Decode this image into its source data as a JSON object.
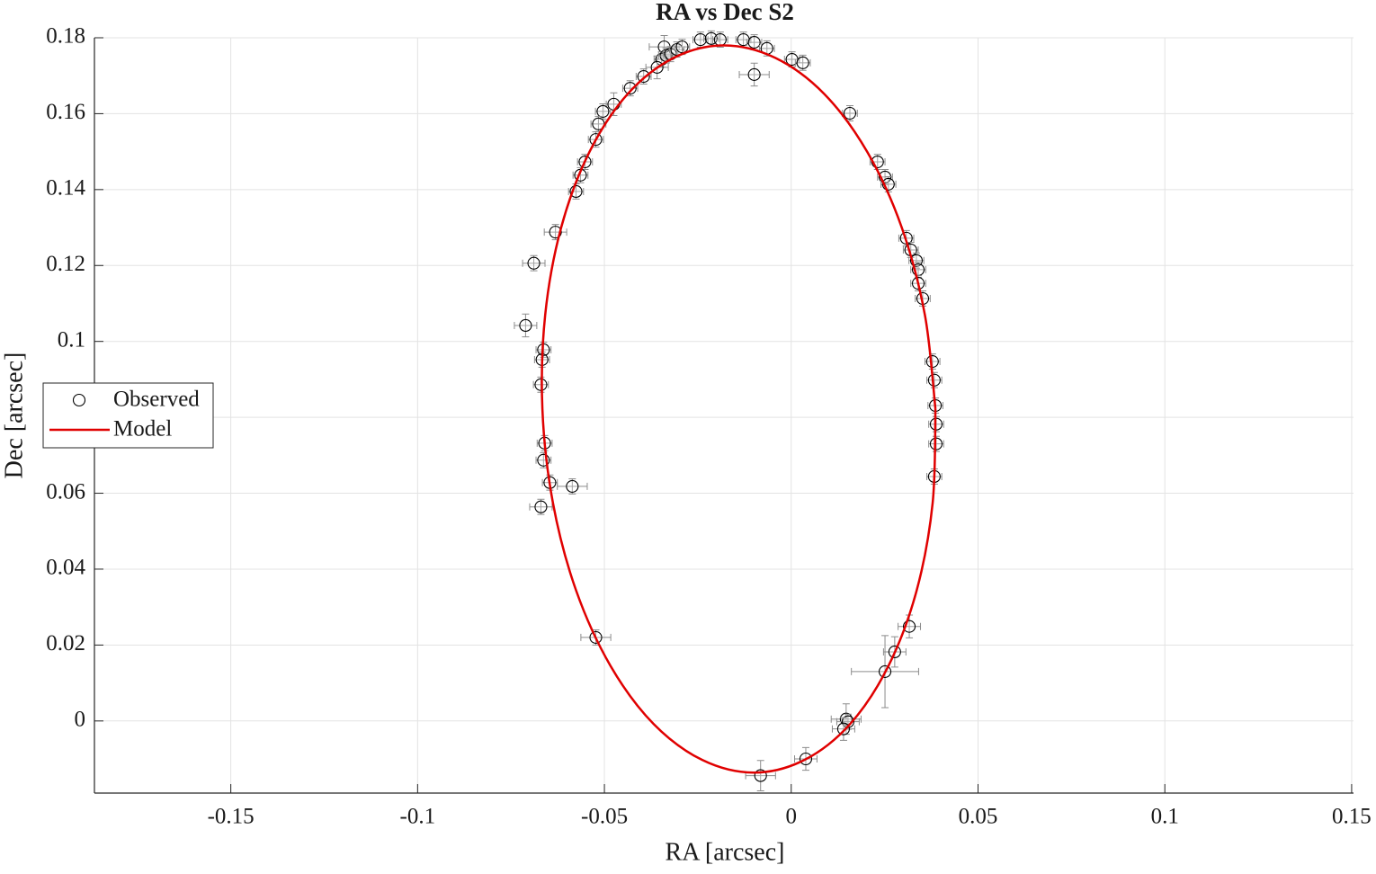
{
  "chart_data": {
    "type": "scatter",
    "title": "RA vs Dec S2",
    "xlabel": "RA [arcsec]",
    "ylabel": "Dec [arcsec]",
    "xlim": [
      -0.1865,
      0.1505
    ],
    "ylim": [
      -0.019,
      0.18
    ],
    "xticks": [
      -0.15,
      -0.1,
      -0.05,
      0,
      0.05,
      0.1,
      0.15
    ],
    "yticks": [
      0,
      0.02,
      0.04,
      0.06,
      0.08,
      0.1,
      0.12,
      0.14,
      0.16,
      0.18
    ],
    "grid": true,
    "legend": "west",
    "series": [
      {
        "name": "Observed",
        "type": "scatter",
        "color": "#000000",
        "errorbar_color": "#8c8c8c",
        "x": [
          -0.034,
          -0.0347,
          -0.0335,
          -0.0323,
          -0.0306,
          -0.0292,
          -0.0243,
          -0.0214,
          -0.019,
          -0.0128,
          -0.0099,
          -0.0065,
          0.0002,
          0.0031,
          -0.0099,
          -0.0359,
          -0.0395,
          -0.0431,
          -0.0475,
          -0.0504,
          -0.0516,
          -0.0523,
          -0.0552,
          -0.0564,
          -0.0576,
          -0.0631,
          -0.0689,
          -0.0711,
          -0.0663,
          -0.0667,
          -0.067,
          -0.066,
          -0.0663,
          -0.0646,
          -0.0586,
          -0.067,
          -0.0523,
          0.0157,
          0.0231,
          0.0251,
          0.026,
          0.0308,
          0.032,
          0.0335,
          0.034,
          0.034,
          0.0352,
          0.0378,
          0.0383,
          0.0386,
          0.0388,
          0.0388,
          0.0383,
          0.0316,
          0.0277,
          0.0251,
          0.0147,
          0.0152,
          0.014,
          0.0039,
          -0.0082
        ],
        "y": [
          0.1776,
          0.1743,
          0.1753,
          0.1757,
          0.1769,
          0.1776,
          0.1795,
          0.1798,
          0.1795,
          0.1795,
          0.1788,
          0.1772,
          0.1743,
          0.1734,
          0.1703,
          0.1722,
          0.1698,
          0.1667,
          0.1625,
          0.1606,
          0.1573,
          0.1532,
          0.1473,
          0.1438,
          0.1395,
          0.1288,
          0.1206,
          0.1042,
          0.0978,
          0.0952,
          0.0886,
          0.0732,
          0.0687,
          0.0628,
          0.0618,
          0.0564,
          0.022,
          0.1601,
          0.1473,
          0.1433,
          0.1414,
          0.1272,
          0.1241,
          0.1213,
          0.1189,
          0.1153,
          0.1113,
          0.0947,
          0.0898,
          0.0831,
          0.0782,
          0.073,
          0.0644,
          0.0249,
          0.0182,
          0.013,
          0.0005,
          -0.0002,
          -0.0021,
          -0.01,
          -0.0144
        ],
        "xerr": [
          0.004,
          0.002,
          0.002,
          0.002,
          0.002,
          0.002,
          0.002,
          0.002,
          0.002,
          0.002,
          0.002,
          0.002,
          0.002,
          0.002,
          0.004,
          0.003,
          0.002,
          0.002,
          0.002,
          0.002,
          0.002,
          0.002,
          0.002,
          0.002,
          0.002,
          0.003,
          0.003,
          0.003,
          0.002,
          0.002,
          0.002,
          0.002,
          0.002,
          0.002,
          0.004,
          0.003,
          0.004,
          0.002,
          0.002,
          0.002,
          0.002,
          0.002,
          0.002,
          0.002,
          0.002,
          0.002,
          0.002,
          0.002,
          0.002,
          0.002,
          0.002,
          0.002,
          0.002,
          0.003,
          0.003,
          0.009,
          0.004,
          0.003,
          0.003,
          0.003,
          0.004
        ],
        "yerr": [
          0.003,
          0.002,
          0.002,
          0.002,
          0.002,
          0.002,
          0.002,
          0.002,
          0.002,
          0.002,
          0.002,
          0.002,
          0.002,
          0.002,
          0.003,
          0.003,
          0.002,
          0.002,
          0.003,
          0.002,
          0.002,
          0.002,
          0.002,
          0.002,
          0.002,
          0.002,
          0.002,
          0.003,
          0.002,
          0.002,
          0.002,
          0.002,
          0.002,
          0.002,
          0.002,
          0.002,
          0.002,
          0.002,
          0.002,
          0.002,
          0.002,
          0.002,
          0.002,
          0.002,
          0.002,
          0.002,
          0.002,
          0.002,
          0.002,
          0.002,
          0.002,
          0.002,
          0.002,
          0.003,
          0.004,
          0.0095,
          0.004,
          0.002,
          0.003,
          0.003,
          0.004
        ]
      },
      {
        "name": "Model",
        "type": "line",
        "color": "#e00000",
        "x": [
          0.0386,
          0.03577,
          0.02955,
          0.02036,
          0.00884,
          -0.00425,
          -0.018,
          -0.03147,
          -0.04376,
          -0.05402,
          -0.06155,
          -0.06585,
          -0.0666,
          -0.06377,
          -0.05755,
          -0.04836,
          -0.03684,
          -0.02375,
          -0.01,
          0.00347,
          0.01576,
          0.02602,
          0.03355,
          0.03785,
          0.0386
        ],
        "y": [
          0.0822,
          0.107,
          0.1301,
          0.1499,
          0.1652,
          0.1747,
          0.178,
          0.1747,
          0.1652,
          0.1499,
          0.1301,
          0.107,
          0.0822,
          0.0574,
          0.0343,
          0.0145,
          -0.0008,
          -0.0103,
          -0.0136,
          -0.0103,
          -0.0008,
          0.0145,
          0.0343,
          0.0574,
          0.0822
        ]
      }
    ]
  }
}
